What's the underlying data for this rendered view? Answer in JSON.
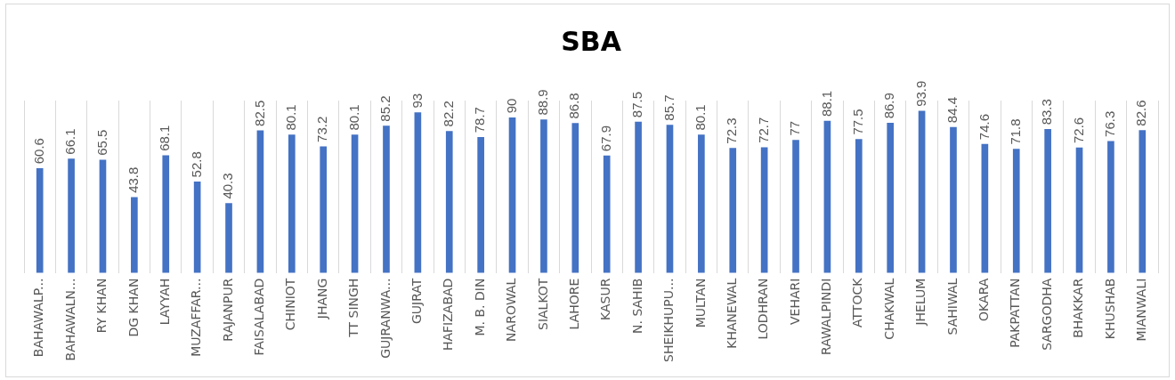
{
  "chart_data": {
    "type": "bar",
    "title": "SBA",
    "categories": [
      "BAHAWALP...",
      "BAHAWALN...",
      "RY KHAN",
      "DG KHAN",
      "LAYYAH",
      "MUZAFFAR...",
      "RAJANPUR",
      "FAISALABAD",
      "CHINIOT",
      "JHANG",
      "TT SINGH",
      "GUJRANWA...",
      "GUJRAT",
      "HAFIZABAD",
      "M. B. DIN",
      "NAROWAL",
      "SIALKOT",
      "LAHORE",
      "KASUR",
      "N. SAHIB",
      "SHEIKHUPU...",
      "MULTAN",
      "KHANEWAL",
      "LODHRAN",
      "VEHARI",
      "RAWALPINDI",
      "ATTOCK",
      "CHAKWAL",
      "JHELUM",
      "SAHIWAL",
      "OKARA",
      "PAKPATTAN",
      "SARGODHA",
      "BHAKKAR",
      "KHUSHAB",
      "MIANWALI"
    ],
    "values": [
      60.6,
      66.1,
      65.5,
      43.8,
      68.1,
      52.8,
      40.3,
      82.5,
      80.1,
      73.2,
      80.1,
      85.2,
      93,
      82.2,
      78.7,
      90,
      88.9,
      86.8,
      67.9,
      87.5,
      85.7,
      80.1,
      72.3,
      72.7,
      77,
      88.1,
      77.5,
      86.9,
      93.9,
      84.4,
      74.6,
      71.8,
      83.3,
      72.6,
      76.3,
      82.6
    ],
    "color": "#4472c4",
    "data_labels": true,
    "grid": "x",
    "legend": false,
    "tick_labels": "x"
  }
}
